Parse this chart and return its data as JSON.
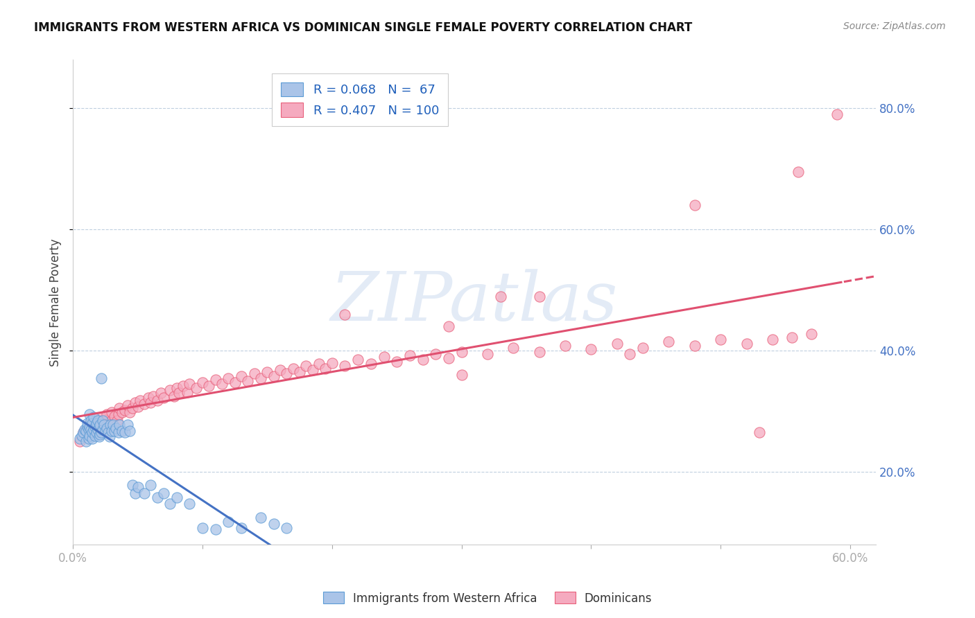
{
  "title": "IMMIGRANTS FROM WESTERN AFRICA VS DOMINICAN SINGLE FEMALE POVERTY CORRELATION CHART",
  "source": "Source: ZipAtlas.com",
  "ylabel": "Single Female Poverty",
  "xlim": [
    0.0,
    0.62
  ],
  "ylim": [
    0.08,
    0.88
  ],
  "yticks": [
    0.2,
    0.4,
    0.6,
    0.8
  ],
  "ytick_labels": [
    "20.0%",
    "40.0%",
    "60.0%",
    "80.0%"
  ],
  "xticks": [
    0.0,
    0.1,
    0.2,
    0.3,
    0.4,
    0.5,
    0.6
  ],
  "xtick_labels": [
    "0.0%",
    "",
    "",
    "",
    "",
    "",
    "60.0%"
  ],
  "blue_R": 0.068,
  "blue_N": 67,
  "pink_R": 0.407,
  "pink_N": 100,
  "blue_color": "#aac4e8",
  "pink_color": "#f5aabf",
  "blue_edge_color": "#5b9bd5",
  "pink_edge_color": "#e8607a",
  "blue_line_color": "#4472c4",
  "pink_line_color": "#e05070",
  "legend_label_blue": "Immigrants from Western Africa",
  "legend_label_pink": "Dominicans",
  "watermark": "ZIPatlas",
  "blue_scatter_x": [
    0.005,
    0.007,
    0.008,
    0.009,
    0.01,
    0.01,
    0.011,
    0.011,
    0.012,
    0.012,
    0.013,
    0.013,
    0.013,
    0.014,
    0.014,
    0.015,
    0.015,
    0.015,
    0.016,
    0.016,
    0.017,
    0.017,
    0.018,
    0.018,
    0.019,
    0.019,
    0.02,
    0.02,
    0.021,
    0.021,
    0.022,
    0.022,
    0.023,
    0.023,
    0.024,
    0.025,
    0.026,
    0.027,
    0.028,
    0.029,
    0.03,
    0.031,
    0.032,
    0.033,
    0.035,
    0.036,
    0.038,
    0.04,
    0.042,
    0.044,
    0.046,
    0.048,
    0.05,
    0.055,
    0.06,
    0.065,
    0.07,
    0.075,
    0.08,
    0.09,
    0.1,
    0.11,
    0.12,
    0.13,
    0.145,
    0.155,
    0.165
  ],
  "blue_scatter_y": [
    0.255,
    0.26,
    0.265,
    0.27,
    0.25,
    0.268,
    0.275,
    0.28,
    0.255,
    0.27,
    0.26,
    0.275,
    0.295,
    0.27,
    0.285,
    0.255,
    0.265,
    0.28,
    0.27,
    0.29,
    0.26,
    0.275,
    0.265,
    0.28,
    0.27,
    0.285,
    0.258,
    0.275,
    0.262,
    0.278,
    0.265,
    0.355,
    0.27,
    0.285,
    0.278,
    0.268,
    0.272,
    0.265,
    0.258,
    0.278,
    0.268,
    0.278,
    0.268,
    0.272,
    0.265,
    0.278,
    0.268,
    0.265,
    0.278,
    0.268,
    0.178,
    0.165,
    0.175,
    0.165,
    0.178,
    0.158,
    0.165,
    0.148,
    0.158,
    0.148,
    0.108,
    0.105,
    0.118,
    0.108,
    0.125,
    0.115,
    0.108
  ],
  "pink_scatter_x": [
    0.005,
    0.008,
    0.01,
    0.012,
    0.014,
    0.015,
    0.016,
    0.018,
    0.02,
    0.02,
    0.022,
    0.022,
    0.024,
    0.025,
    0.026,
    0.028,
    0.03,
    0.03,
    0.032,
    0.034,
    0.035,
    0.036,
    0.038,
    0.04,
    0.042,
    0.044,
    0.046,
    0.048,
    0.05,
    0.052,
    0.055,
    0.058,
    0.06,
    0.062,
    0.065,
    0.068,
    0.07,
    0.075,
    0.078,
    0.08,
    0.082,
    0.085,
    0.088,
    0.09,
    0.095,
    0.1,
    0.105,
    0.11,
    0.115,
    0.12,
    0.125,
    0.13,
    0.135,
    0.14,
    0.145,
    0.15,
    0.155,
    0.16,
    0.165,
    0.17,
    0.175,
    0.18,
    0.185,
    0.19,
    0.195,
    0.2,
    0.21,
    0.22,
    0.23,
    0.24,
    0.25,
    0.26,
    0.27,
    0.28,
    0.29,
    0.3,
    0.32,
    0.34,
    0.36,
    0.38,
    0.4,
    0.42,
    0.44,
    0.46,
    0.48,
    0.5,
    0.52,
    0.54,
    0.555,
    0.57,
    0.21,
    0.3,
    0.29,
    0.33,
    0.36,
    0.43,
    0.53,
    0.48,
    0.56,
    0.59
  ],
  "pink_scatter_y": [
    0.25,
    0.265,
    0.27,
    0.278,
    0.268,
    0.275,
    0.282,
    0.272,
    0.268,
    0.285,
    0.275,
    0.29,
    0.278,
    0.285,
    0.295,
    0.28,
    0.285,
    0.298,
    0.292,
    0.285,
    0.295,
    0.305,
    0.298,
    0.302,
    0.31,
    0.298,
    0.305,
    0.315,
    0.308,
    0.318,
    0.312,
    0.322,
    0.315,
    0.325,
    0.318,
    0.33,
    0.322,
    0.335,
    0.325,
    0.338,
    0.33,
    0.342,
    0.332,
    0.345,
    0.338,
    0.348,
    0.342,
    0.352,
    0.345,
    0.355,
    0.348,
    0.358,
    0.35,
    0.362,
    0.355,
    0.365,
    0.358,
    0.368,
    0.362,
    0.37,
    0.365,
    0.375,
    0.368,
    0.378,
    0.37,
    0.38,
    0.375,
    0.385,
    0.378,
    0.39,
    0.382,
    0.392,
    0.385,
    0.395,
    0.388,
    0.398,
    0.395,
    0.405,
    0.398,
    0.408,
    0.402,
    0.412,
    0.405,
    0.415,
    0.408,
    0.418,
    0.412,
    0.418,
    0.422,
    0.428,
    0.46,
    0.36,
    0.44,
    0.49,
    0.49,
    0.395,
    0.265,
    0.64,
    0.695,
    0.79
  ]
}
